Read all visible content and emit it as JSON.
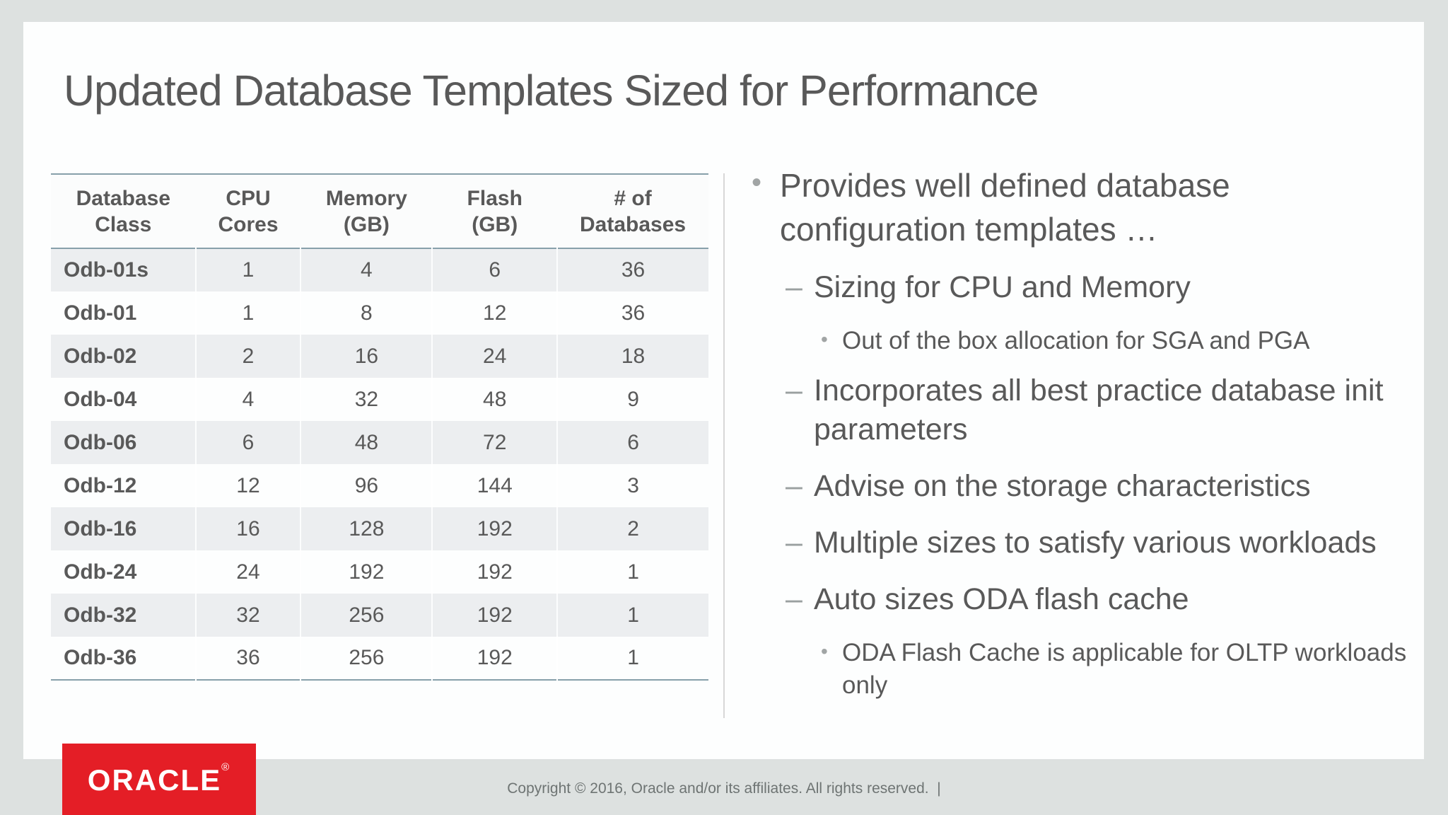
{
  "slide": {
    "title": "Updated Database Templates Sized for Performance"
  },
  "table": {
    "columns": [
      "Database\nClass",
      "CPU\nCores",
      "Memory\n(GB)",
      "Flash\n(GB)",
      "# of\nDatabases"
    ],
    "rows": [
      [
        "Odb-01s",
        "1",
        "4",
        "6",
        "36"
      ],
      [
        "Odb-01",
        "1",
        "8",
        "12",
        "36"
      ],
      [
        "Odb-02",
        "2",
        "16",
        "24",
        "18"
      ],
      [
        "Odb-04",
        "4",
        "32",
        "48",
        "9"
      ],
      [
        "Odb-06",
        "6",
        "48",
        "72",
        "6"
      ],
      [
        "Odb-12",
        "12",
        "96",
        "144",
        "3"
      ],
      [
        "Odb-16",
        "16",
        "128",
        "192",
        "2"
      ],
      [
        "Odb-24",
        "24",
        "192",
        "192",
        "1"
      ],
      [
        "Odb-32",
        "32",
        "256",
        "192",
        "1"
      ],
      [
        "Odb-36",
        "36",
        "256",
        "192",
        "1"
      ]
    ]
  },
  "bullets": {
    "markers": {
      "level1": "•",
      "level2": "–",
      "level3": "•"
    },
    "items": [
      {
        "level": 1,
        "text": "Provides well defined database configuration templates …"
      },
      {
        "level": 2,
        "text": "Sizing for CPU and Memory"
      },
      {
        "level": 3,
        "text": "Out of the box allocation for SGA and PGA"
      },
      {
        "level": 2,
        "text": "Incorporates all best practice database init parameters"
      },
      {
        "level": 2,
        "text": "Advise on the storage characteristics"
      },
      {
        "level": 2,
        "text": "Multiple sizes to satisfy various workloads"
      },
      {
        "level": 2,
        "text": "Auto sizes ODA flash cache"
      },
      {
        "level": 3,
        "text": "ODA Flash Cache is applicable for OLTP workloads only"
      }
    ]
  },
  "footer": {
    "logo_text": "ORACLE",
    "logo_registered": "®",
    "copyright": "Copyright © 2016, Oracle and/or its affiliates. All rights reserved.  |"
  },
  "colors": {
    "page_background": "#dde1e0",
    "slide_background": "#fdfefe",
    "table_border_accent": "#87a0aa",
    "table_stripe": "#eceef0",
    "body_text": "#595959",
    "bullet_marker": "#9aa0a0",
    "oracle_red": "#e41e26",
    "divider": "#d8d8d8",
    "copyright_text": "#6e7473"
  }
}
